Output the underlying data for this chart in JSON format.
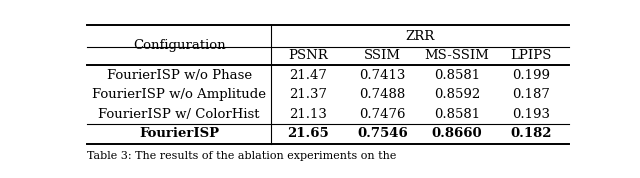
{
  "title_col1": "Configuration",
  "title_group": "ZRR",
  "subheaders": [
    "PSNR",
    "SSIM",
    "MS-SSIM",
    "LPIPS"
  ],
  "rows": [
    {
      "config": "FourierISP w/o Phase",
      "values": [
        "21.47",
        "0.7413",
        "0.8581",
        "0.199"
      ],
      "bold": false
    },
    {
      "config": "FourierISP w/o Amplitude",
      "values": [
        "21.37",
        "0.7488",
        "0.8592",
        "0.187"
      ],
      "bold": false
    },
    {
      "config": "FourierISP w/ ColorHist",
      "values": [
        "21.13",
        "0.7476",
        "0.8581",
        "0.193"
      ],
      "bold": false
    },
    {
      "config": "FourierISP",
      "values": [
        "21.65",
        "0.7546",
        "0.8660",
        "0.182"
      ],
      "bold": true
    }
  ],
  "bg_color": "#ffffff",
  "text_color": "#000000",
  "font_size": 9.5,
  "caption": "Table 3: The results of the ablation experiments on the"
}
